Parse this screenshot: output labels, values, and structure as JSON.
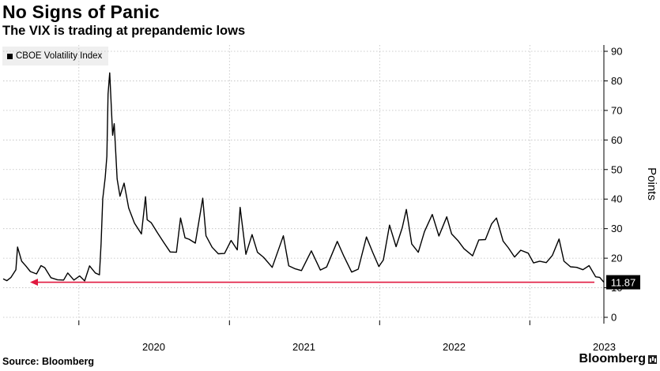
{
  "title": "No Signs of Panic",
  "subtitle": "The VIX is trading at prepandemic lows",
  "source": "Source: Bloomberg",
  "brand": "Bloomberg",
  "chart_data": {
    "type": "line",
    "title": "No Signs of Panic",
    "subtitle": "The VIX is trading at prepandemic lows",
    "legend": [
      "CBOE Volatility Index"
    ],
    "legend_position": "top-left",
    "ylabel": "Points",
    "ylim": [
      0,
      90
    ],
    "yticks": [
      0,
      10,
      20,
      30,
      40,
      50,
      60,
      70,
      80,
      90
    ],
    "y_axis_side": "right",
    "xlim": [
      "2019-07-01",
      "2023-06-30"
    ],
    "xtick_labels": [
      "2020",
      "2021",
      "2022",
      "2023"
    ],
    "grid": true,
    "last_value_label": "11.87",
    "reference_line": {
      "y": 11.87,
      "color": "#e0193f",
      "arrow": "left"
    },
    "series": [
      {
        "name": "CBOE Volatility Index",
        "color": "#000000",
        "x": [
          "2019-07-01",
          "2019-07-10",
          "2019-07-20",
          "2019-08-01",
          "2019-08-05",
          "2019-08-15",
          "2019-08-25",
          "2019-09-05",
          "2019-09-20",
          "2019-10-01",
          "2019-10-10",
          "2019-10-25",
          "2019-11-10",
          "2019-11-25",
          "2019-12-05",
          "2019-12-20",
          "2020-01-03",
          "2020-01-15",
          "2020-01-27",
          "2020-02-10",
          "2020-02-20",
          "2020-02-24",
          "2020-02-28",
          "2020-03-05",
          "2020-03-09",
          "2020-03-12",
          "2020-03-16",
          "2020-03-18",
          "2020-03-23",
          "2020-03-27",
          "2020-04-03",
          "2020-04-10",
          "2020-04-20",
          "2020-05-01",
          "2020-05-15",
          "2020-06-01",
          "2020-06-11",
          "2020-06-15",
          "2020-06-25",
          "2020-07-10",
          "2020-07-25",
          "2020-08-10",
          "2020-08-25",
          "2020-09-04",
          "2020-09-15",
          "2020-09-25",
          "2020-10-10",
          "2020-10-28",
          "2020-11-05",
          "2020-11-20",
          "2020-12-05",
          "2020-12-20",
          "2021-01-05",
          "2021-01-20",
          "2021-01-27",
          "2021-02-10",
          "2021-02-25",
          "2021-03-10",
          "2021-03-25",
          "2021-04-15",
          "2021-05-12",
          "2021-05-25",
          "2021-06-10",
          "2021-06-25",
          "2021-07-19",
          "2021-08-10",
          "2021-08-25",
          "2021-09-20",
          "2021-10-05",
          "2021-10-25",
          "2021-11-10",
          "2021-11-30",
          "2021-12-15",
          "2021-12-30",
          "2022-01-10",
          "2022-01-25",
          "2022-02-10",
          "2022-02-25",
          "2022-03-07",
          "2022-03-20",
          "2022-04-05",
          "2022-04-20",
          "2022-05-09",
          "2022-05-25",
          "2022-06-13",
          "2022-06-25",
          "2022-07-10",
          "2022-07-25",
          "2022-08-15",
          "2022-08-30",
          "2022-09-15",
          "2022-09-30",
          "2022-10-12",
          "2022-10-28",
          "2022-11-10",
          "2022-11-25",
          "2022-12-10",
          "2022-12-28",
          "2023-01-10",
          "2023-01-25",
          "2023-02-10",
          "2023-02-25",
          "2023-03-13",
          "2023-03-25",
          "2023-04-10",
          "2023-04-25",
          "2023-05-10",
          "2023-05-25",
          "2023-06-10",
          "2023-06-20",
          "2023-06-30"
        ],
        "values": [
          13.0,
          12.4,
          13.5,
          16.1,
          23.8,
          19.0,
          17.4,
          15.5,
          14.7,
          17.5,
          16.8,
          13.4,
          12.7,
          12.6,
          15.0,
          12.6,
          14.0,
          12.3,
          17.4,
          15.0,
          14.4,
          25.0,
          40.1,
          47.3,
          54.5,
          75.5,
          82.7,
          76.5,
          61.6,
          65.5,
          46.8,
          41.0,
          45.4,
          37.0,
          31.9,
          28.2,
          40.8,
          33.0,
          32.0,
          28.6,
          25.4,
          22.1,
          22.0,
          33.6,
          26.9,
          26.4,
          25.1,
          40.3,
          27.6,
          23.7,
          21.5,
          21.6,
          26.0,
          22.8,
          37.2,
          21.3,
          28.0,
          22.0,
          20.3,
          16.9,
          27.6,
          17.4,
          16.4,
          15.8,
          22.5,
          16.0,
          17.0,
          25.7,
          21.0,
          15.3,
          16.3,
          27.2,
          22.0,
          17.2,
          19.4,
          31.2,
          23.9,
          30.3,
          36.5,
          24.8,
          22.0,
          29.0,
          34.8,
          27.5,
          34.0,
          28.2,
          26.0,
          23.2,
          20.8,
          26.2,
          26.3,
          31.6,
          33.6,
          25.8,
          23.5,
          20.4,
          22.7,
          21.7,
          18.4,
          19.0,
          18.5,
          21.0,
          26.5,
          19.0,
          17.1,
          16.9,
          16.1,
          17.5,
          13.7,
          13.5,
          11.87
        ]
      }
    ]
  }
}
